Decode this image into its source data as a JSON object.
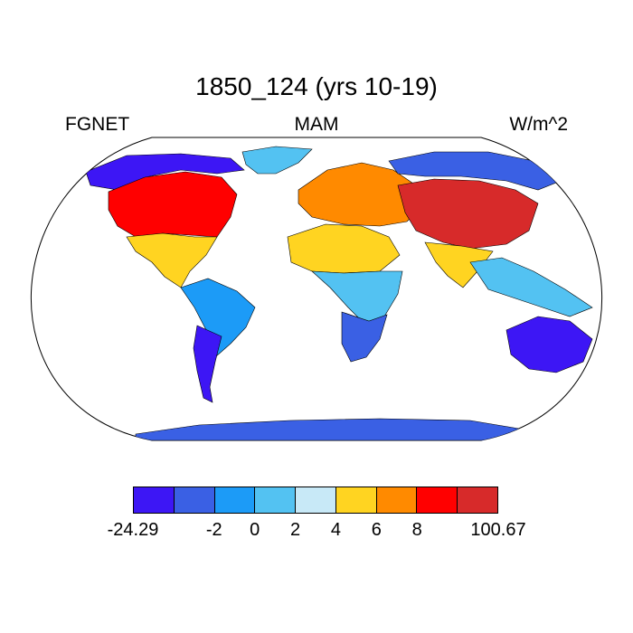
{
  "title": "1850_124 (yrs 10-19)",
  "left_label": "FGNET",
  "center_label": "MAM",
  "right_label": "W/m^2",
  "colorbar": {
    "colors": [
      "#3d16f5",
      "#3a60e4",
      "#1c9bf7",
      "#53c2f2",
      "#c8e9f7",
      "#ffd421",
      "#ff8a00",
      "#ff0000",
      "#d72a2a"
    ],
    "labels": [
      "-24.29",
      "-2",
      "0",
      "2",
      "4",
      "6",
      "8",
      "100.67"
    ],
    "label_positions_index": [
      0,
      2,
      3,
      4,
      5,
      6,
      7,
      9
    ]
  },
  "regions": [
    {
      "name": "north-america-arctic",
      "color": "#3d16f5"
    },
    {
      "name": "north-america-central",
      "color": "#ff0000"
    },
    {
      "name": "north-america-south",
      "color": "#ffd421"
    },
    {
      "name": "greenland",
      "color": "#53c2f2"
    },
    {
      "name": "south-america",
      "color": "#1c9bf7"
    },
    {
      "name": "patagonia",
      "color": "#3d16f5"
    },
    {
      "name": "sahara",
      "color": "#ffd421"
    },
    {
      "name": "central-africa",
      "color": "#53c2f2"
    },
    {
      "name": "southern-africa",
      "color": "#3a60e4"
    },
    {
      "name": "europe",
      "color": "#ff8a00"
    },
    {
      "name": "siberia",
      "color": "#3a60e4"
    },
    {
      "name": "central-asia",
      "color": "#d72a2a"
    },
    {
      "name": "india",
      "color": "#ffd421"
    },
    {
      "name": "southeast-asia",
      "color": "#53c2f2"
    },
    {
      "name": "australia",
      "color": "#3d16f5"
    },
    {
      "name": "antarctica",
      "color": "#3a60e4"
    }
  ]
}
